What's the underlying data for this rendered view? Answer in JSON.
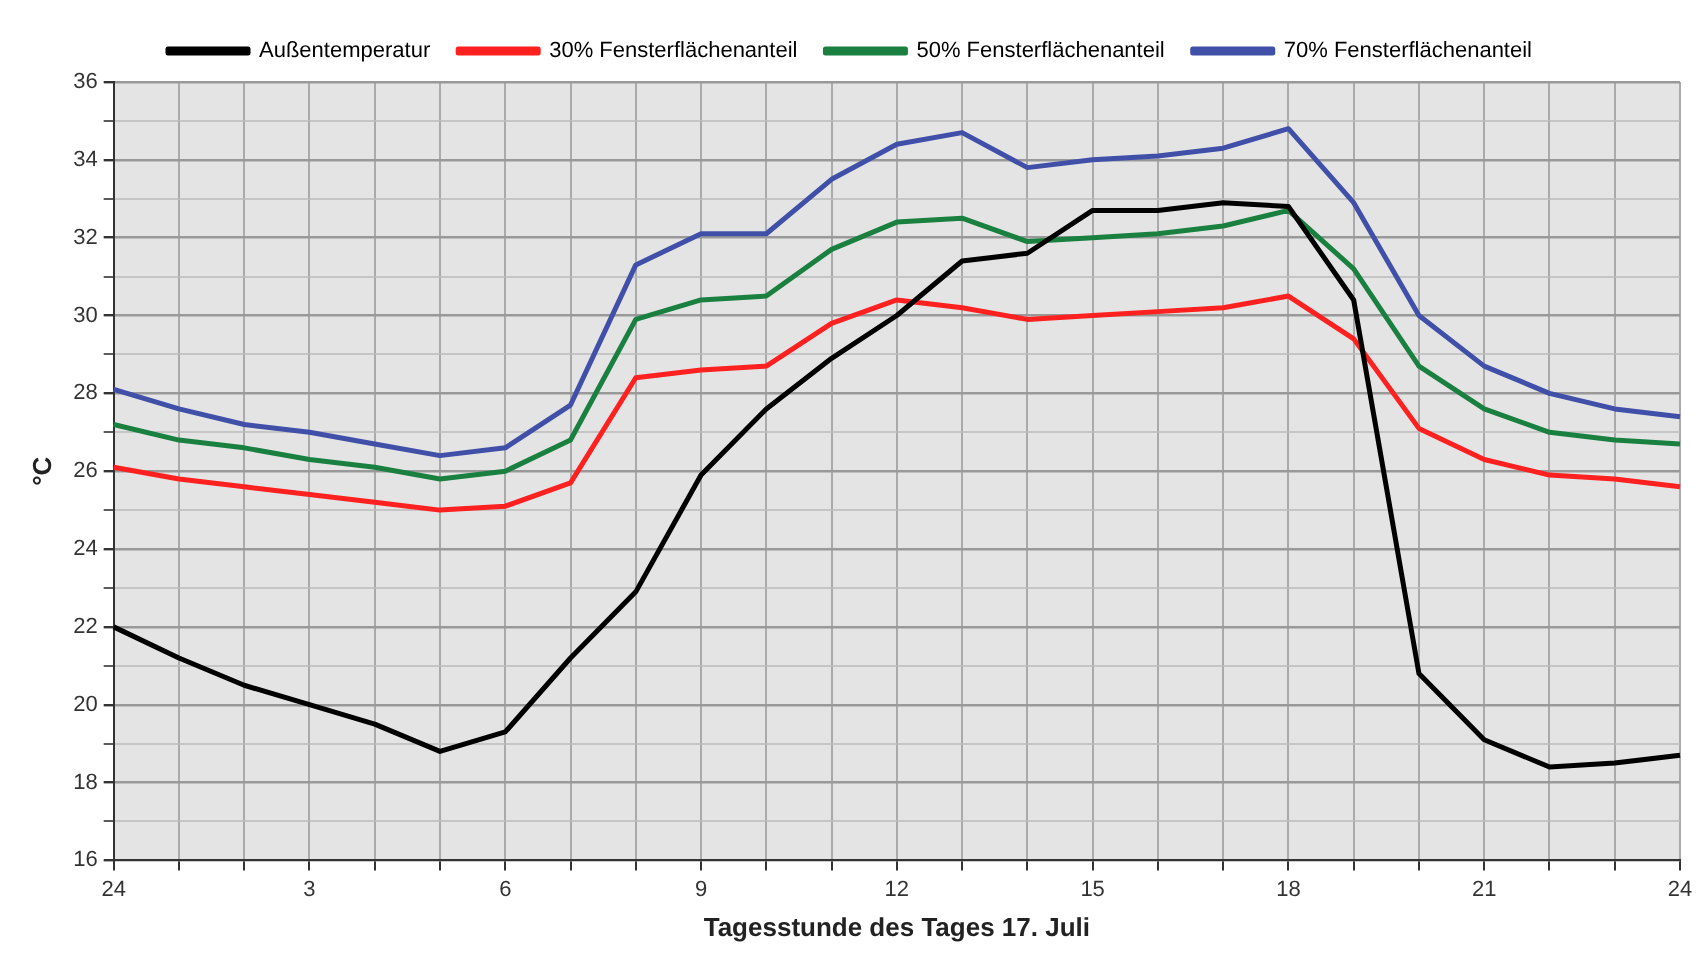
{
  "chart_data": {
    "type": "line",
    "xlabel": "Tagesstunde des Tages 17. Juli",
    "ylabel": "°C",
    "categories": [
      "24",
      null,
      null,
      "3",
      null,
      null,
      "6",
      null,
      null,
      "9",
      null,
      null,
      "12",
      null,
      null,
      "15",
      null,
      null,
      "18",
      null,
      null,
      "21",
      null,
      null,
      "24"
    ],
    "ylim": [
      16,
      36
    ],
    "yticks": [
      16,
      {
        "value": 17,
        "label": null
      },
      18,
      {
        "value": 19,
        "label": null
      },
      20,
      {
        "value": 21,
        "label": null
      },
      22,
      {
        "value": 23,
        "label": null
      },
      24,
      {
        "value": 25,
        "label": null
      },
      26,
      {
        "value": 27,
        "label": null
      },
      28,
      {
        "value": 29,
        "label": null
      },
      30,
      {
        "value": 31,
        "label": null
      },
      32,
      {
        "value": 33,
        "label": null
      },
      34,
      {
        "value": 35,
        "label": null
      },
      36
    ],
    "grid": true,
    "legend": "top",
    "marker": "none",
    "line_style": "solid",
    "series": [
      {
        "name": "Außentemperatur",
        "color": "#000000",
        "values": [
          22.0,
          21.2,
          20.5,
          20.0,
          19.5,
          18.8,
          19.3,
          21.2,
          22.9,
          25.9,
          27.6,
          28.9,
          30.0,
          31.4,
          31.6,
          32.7,
          32.7,
          32.9,
          32.8,
          30.4,
          20.8,
          19.1,
          18.4,
          18.5,
          18.7
        ]
      },
      {
        "name": "30% Fensterflächenanteil",
        "color": "#ff2020",
        "values": [
          26.1,
          25.8,
          25.6,
          25.4,
          25.2,
          25.0,
          25.1,
          25.7,
          28.4,
          28.6,
          28.7,
          29.8,
          30.4,
          30.2,
          29.9,
          30.0,
          30.1,
          30.2,
          30.5,
          29.4,
          27.1,
          26.3,
          25.9,
          25.8,
          25.6
        ]
      },
      {
        "name": "50% Fensterflächenanteil",
        "color": "#1a8040",
        "values": [
          27.2,
          26.8,
          26.6,
          26.3,
          26.1,
          25.8,
          26.0,
          26.8,
          29.9,
          30.4,
          30.5,
          31.7,
          32.4,
          32.5,
          31.9,
          32.0,
          32.1,
          32.3,
          32.7,
          31.2,
          28.7,
          27.6,
          27.0,
          26.8,
          26.7
        ]
      },
      {
        "name": "70% Fensterflächenanteil",
        "color": "#4050a8",
        "values": [
          28.1,
          27.6,
          27.2,
          27.0,
          26.7,
          26.4,
          26.6,
          27.7,
          31.3,
          32.1,
          32.1,
          33.5,
          34.4,
          34.7,
          33.8,
          34.0,
          34.1,
          34.3,
          34.8,
          32.9,
          30.0,
          28.7,
          28.0,
          27.6,
          27.4
        ]
      }
    ]
  }
}
